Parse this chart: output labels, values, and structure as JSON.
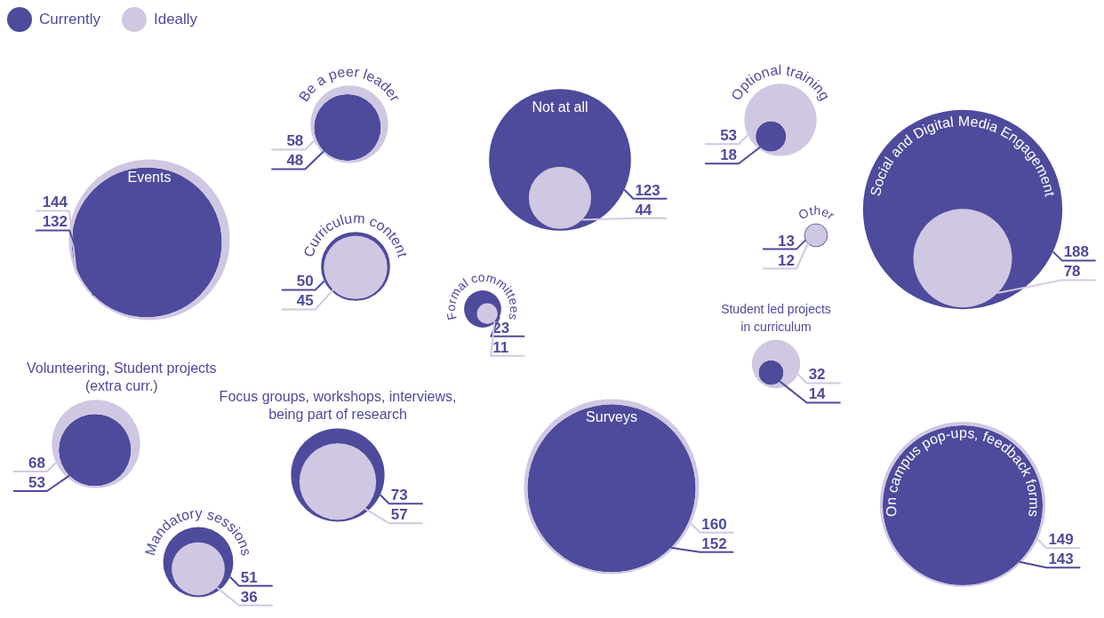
{
  "chart_data": {
    "type": "other",
    "legend": "top left",
    "data_labels": true,
    "categories": [
      "Events",
      "Be a peer leader",
      "Curriculum content",
      "Volunteering, Student projects (extra curr.)",
      "Focus groups, workshops, interviews, being part of research",
      "Mandatory sessions",
      "Formal committees",
      "Not at all",
      "Surveys",
      "Student led projects in curriculum",
      "Optional training",
      "Other",
      "Social and Digital Media Engagement",
      "On campus pop-ups, feedback forms"
    ],
    "series": [
      {
        "name": "Currently",
        "color": "#4e4a9c",
        "values": [
          132,
          48,
          50,
          53,
          73,
          51,
          23,
          123,
          152,
          14,
          18,
          13,
          188,
          143
        ]
      },
      {
        "name": "Ideally",
        "color": "#d0c8e2",
        "values": [
          144,
          58,
          45,
          68,
          57,
          36,
          11,
          44,
          160,
          32,
          53,
          12,
          78,
          149
        ]
      }
    ]
  }
}
